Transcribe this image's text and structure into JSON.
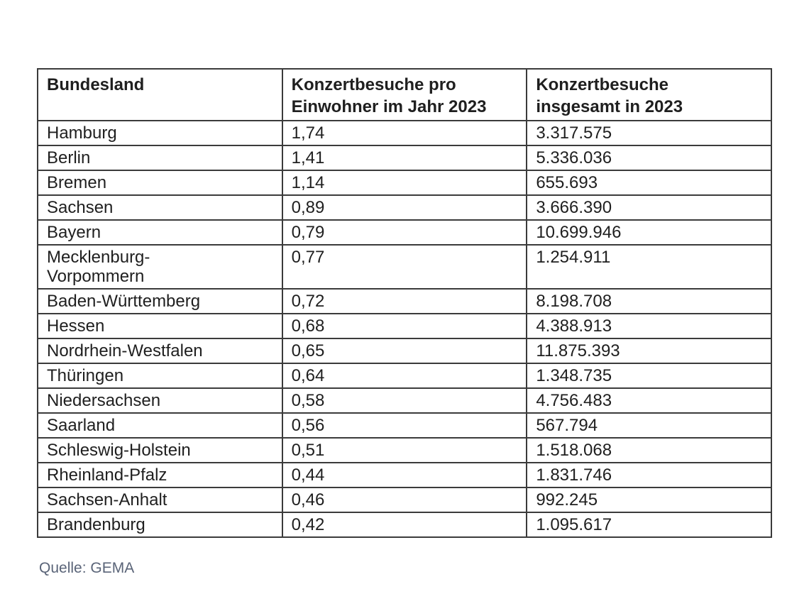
{
  "table": {
    "columns": [
      {
        "label": "Bundesland"
      },
      {
        "label": "Konzertbesuche pro\nEinwohner im Jahr 2023"
      },
      {
        "label": "Konzertbesuche\ninsgesamt in 2023"
      }
    ],
    "rows": [
      {
        "state": "Hamburg",
        "per_inhabitant": "1,74",
        "total": "3.317.575"
      },
      {
        "state": "Berlin",
        "per_inhabitant": "1,41",
        "total": "5.336.036"
      },
      {
        "state": "Bremen",
        "per_inhabitant": "1,14",
        "total": "655.693"
      },
      {
        "state": "Sachsen",
        "per_inhabitant": "0,89",
        "total": "3.666.390"
      },
      {
        "state": "Bayern",
        "per_inhabitant": "0,79",
        "total": "10.699.946"
      },
      {
        "state": "Mecklenburg-\nVorpommern",
        "per_inhabitant": "0,77",
        "total": "1.254.911"
      },
      {
        "state": "Baden-Württemberg",
        "per_inhabitant": "0,72",
        "total": "8.198.708"
      },
      {
        "state": "Hessen",
        "per_inhabitant": "0,68",
        "total": "4.388.913"
      },
      {
        "state": "Nordrhein-Westfalen",
        "per_inhabitant": "0,65",
        "total": "11.875.393"
      },
      {
        "state": "Thüringen",
        "per_inhabitant": "0,64",
        "total": "1.348.735"
      },
      {
        "state": "Niedersachsen",
        "per_inhabitant": "0,58",
        "total": "4.756.483"
      },
      {
        "state": "Saarland",
        "per_inhabitant": "0,56",
        "total": "567.794"
      },
      {
        "state": "Schleswig-Holstein",
        "per_inhabitant": "0,51",
        "total": "1.518.068"
      },
      {
        "state": "Rheinland-Pfalz",
        "per_inhabitant": "0,44",
        "total": "1.831.746"
      },
      {
        "state": "Sachsen-Anhalt",
        "per_inhabitant": "0,46",
        "total": "992.245"
      },
      {
        "state": "Brandenburg",
        "per_inhabitant": "0,42",
        "total": "1.095.617"
      }
    ]
  },
  "source": {
    "text": "Quelle: GEMA"
  },
  "colors": {
    "table_text": "#1f1f1f",
    "table_border": "#3b3b3b",
    "source_text": "#5a6478",
    "background": "#ffffff"
  },
  "chart_data": {
    "type": "table",
    "title": "",
    "columns": [
      "Bundesland",
      "Konzertbesuche pro Einwohner im Jahr 2023",
      "Konzertbesuche insgesamt in 2023"
    ],
    "categories": [
      "Hamburg",
      "Berlin",
      "Bremen",
      "Sachsen",
      "Bayern",
      "Mecklenburg-Vorpommern",
      "Baden-Württemberg",
      "Hessen",
      "Nordrhein-Westfalen",
      "Thüringen",
      "Niedersachsen",
      "Saarland",
      "Schleswig-Holstein",
      "Rheinland-Pfalz",
      "Sachsen-Anhalt",
      "Brandenburg"
    ],
    "series": [
      {
        "name": "Konzertbesuche pro Einwohner im Jahr 2023",
        "values": [
          1.74,
          1.41,
          1.14,
          0.89,
          0.79,
          0.77,
          0.72,
          0.68,
          0.65,
          0.64,
          0.58,
          0.56,
          0.51,
          0.44,
          0.46,
          0.42
        ]
      },
      {
        "name": "Konzertbesuche insgesamt in 2023",
        "values": [
          3317575,
          5336036,
          655693,
          3666390,
          10699946,
          1254911,
          8198708,
          4388913,
          11875393,
          1348735,
          4756483,
          567794,
          1518068,
          1831746,
          992245,
          1095617
        ]
      }
    ],
    "annotations": [
      "Quelle: GEMA"
    ]
  }
}
